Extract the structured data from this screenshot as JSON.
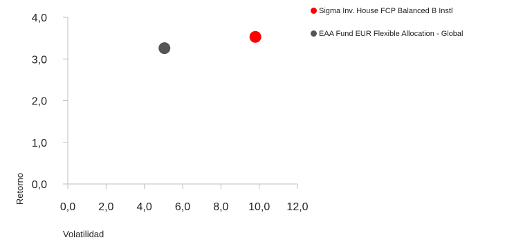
{
  "chart_data": {
    "type": "scatter",
    "xlabel": "Volatilidad",
    "ylabel": "Retorno",
    "xlim": [
      0,
      12
    ],
    "ylim": [
      0,
      4
    ],
    "x_ticks": [
      "0,0",
      "2,0",
      "4,0",
      "6,0",
      "8,0",
      "10,0",
      "12,0"
    ],
    "y_ticks": [
      "0,0",
      "1,0",
      "2,0",
      "3,0",
      "4,0"
    ],
    "grid": false,
    "legend_position": "top-right",
    "series": [
      {
        "name": "Sigma Inv. House FCP Balanced B Instl",
        "color": "#ff0000",
        "x": [
          9.8
        ],
        "y": [
          3.53
        ]
      },
      {
        "name": "EAA Fund EUR Flexible Allocation - Global",
        "color": "#555555",
        "x": [
          5.05
        ],
        "y": [
          3.26
        ]
      }
    ]
  }
}
